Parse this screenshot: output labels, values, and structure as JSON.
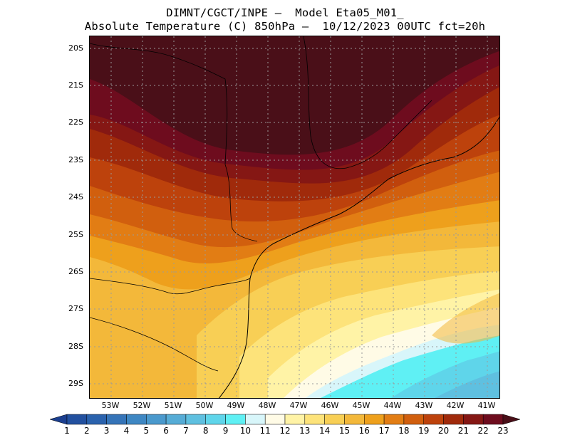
{
  "header": {
    "line1": "DIMNT/CGCT/INPE –  Model Eta05_M01_",
    "line2": "Absolute Temperature (C) 850hPa –  10/12/2023 00UTC fct=20h"
  },
  "map": {
    "lat_labels": [
      "20S",
      "21S",
      "22S",
      "23S",
      "24S",
      "25S",
      "26S",
      "27S",
      "28S",
      "29S"
    ],
    "lon_labels": [
      "53W",
      "52W",
      "51W",
      "50W",
      "49W",
      "48W",
      "47W",
      "46W",
      "45W",
      "44W",
      "43W",
      "42W",
      "41W"
    ]
  },
  "colorbar": {
    "levels": [
      "1",
      "2",
      "3",
      "4",
      "5",
      "6",
      "7",
      "8",
      "9",
      "10",
      "11",
      "12",
      "13",
      "14",
      "15",
      "16",
      "17",
      "18",
      "19",
      "20",
      "21",
      "22",
      "23"
    ],
    "colors": [
      "#1b3f8f",
      "#22509f",
      "#2a62ad",
      "#3574b8",
      "#3e87c3",
      "#4a99cd",
      "#56acd6",
      "#5fc0e0",
      "#5fd5ea",
      "#5ff0f4",
      "#d8f6fa",
      "#fffbe6",
      "#fff3a6",
      "#fde37a",
      "#f8cf55",
      "#f3b83a",
      "#eea01c",
      "#e27d14",
      "#d15f0e",
      "#bd420c",
      "#a02a0b",
      "#851714",
      "#6e0c1e",
      "#4a0f18"
    ]
  }
}
